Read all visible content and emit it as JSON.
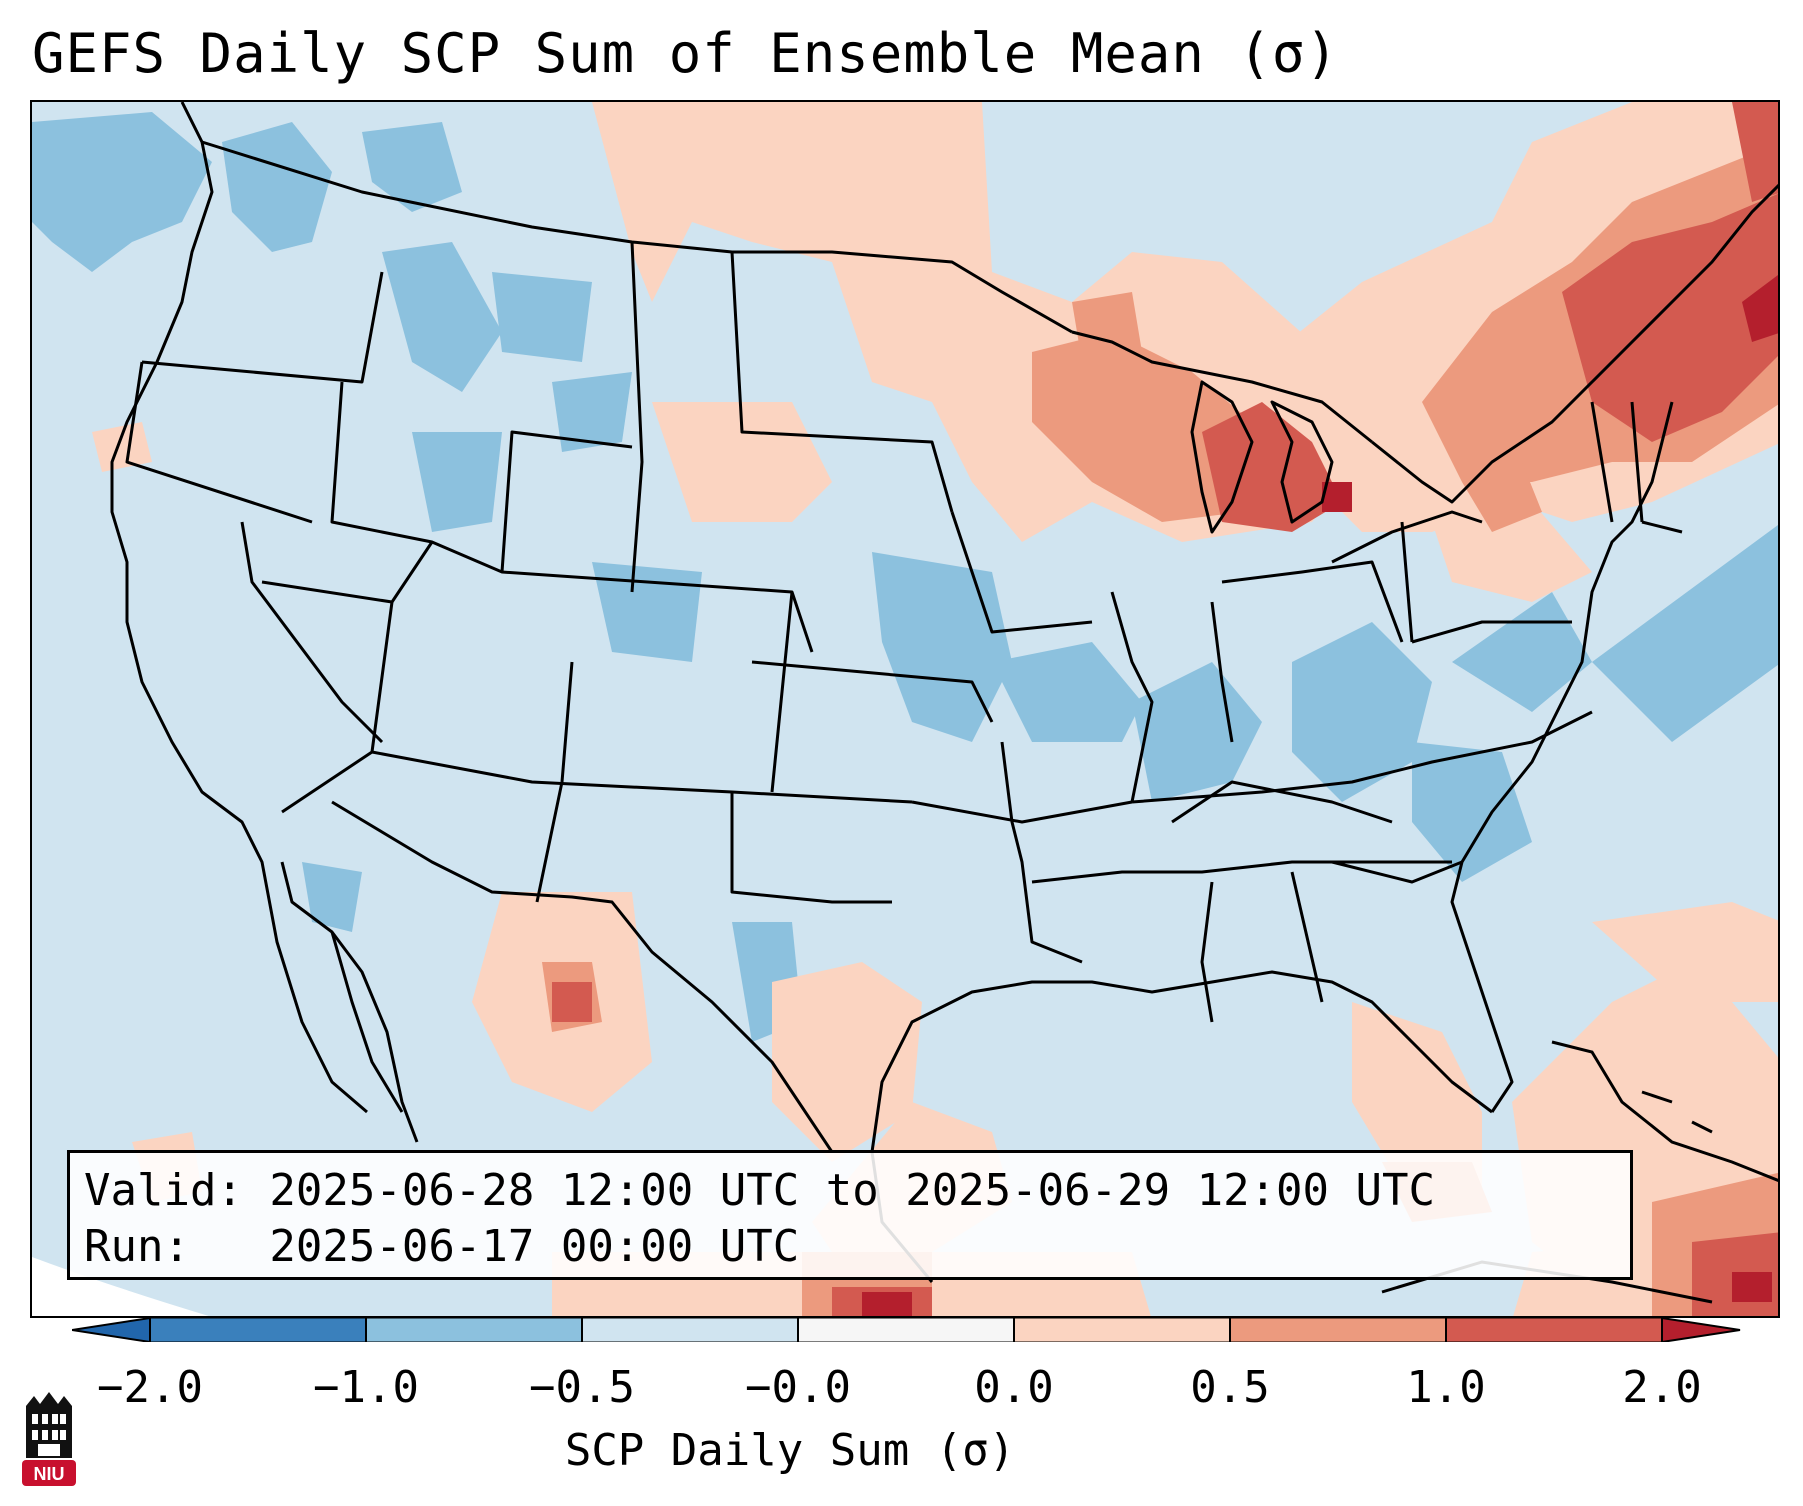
{
  "title": "GEFS Daily SCP Sum of Ensemble Mean (σ)",
  "info": {
    "valid": "Valid: 2025-06-28 12:00 UTC to 2025-06-29 12:00 UTC",
    "run": "Run:   2025-06-17 00:00 UTC"
  },
  "colorbar": {
    "label": "SCP Daily Sum (σ)",
    "ticks": [
      "−2.0",
      "−1.0",
      "−0.5",
      "−0.0",
      "0.0",
      "0.5",
      "1.0",
      "2.0"
    ],
    "colors": [
      "#3a80bc",
      "#8cc1de",
      "#d0e4f0",
      "#f6f6f6",
      "#fbd4c1",
      "#ec9a7e",
      "#d35a50",
      "#b41f2d"
    ]
  },
  "logo": {
    "text": "NIU",
    "color": "#c8102e"
  }
}
